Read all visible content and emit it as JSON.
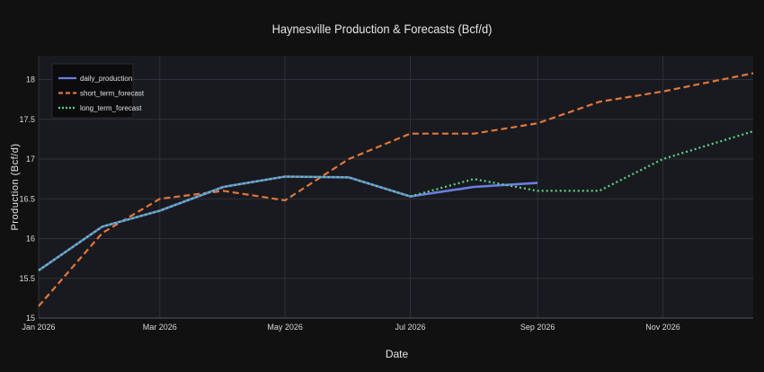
{
  "chart_data": {
    "type": "line",
    "title": "Haynesville Production & Forecasts (Bcf/d)",
    "xlabel": "Date",
    "ylabel": "Production (Bcf/d)",
    "x_ticks": [
      "Jan 2026",
      "Mar 2026",
      "May 2026",
      "Jul 2026",
      "Sep 2026",
      "Nov 2026"
    ],
    "y_ticks": [
      "15",
      "15.5",
      "16",
      "16.5",
      "17",
      "17.5",
      "18"
    ],
    "xlim": [
      "2026-01-01",
      "2026-12-15"
    ],
    "ylim": [
      15.0,
      18.3
    ],
    "grid": true,
    "legend_position": "top-left",
    "series": [
      {
        "name": "daily_production",
        "color": "#6b7fe0",
        "style": "solid",
        "x": [
          "2026-01-01",
          "2026-02-01",
          "2026-03-01",
          "2026-04-01",
          "2026-05-01",
          "2026-06-01",
          "2026-07-01",
          "2026-08-01",
          "2026-09-01"
        ],
        "y": [
          15.6,
          16.15,
          16.35,
          16.65,
          16.78,
          16.77,
          16.53,
          16.65,
          16.7
        ]
      },
      {
        "name": "short_term_forecast",
        "color": "#e2773b",
        "style": "dashed",
        "x": [
          "2026-01-01",
          "2026-02-01",
          "2026-03-01",
          "2026-04-01",
          "2026-05-01",
          "2026-06-01",
          "2026-07-01",
          "2026-08-01",
          "2026-09-01",
          "2026-10-01",
          "2026-11-01",
          "2026-12-15"
        ],
        "y": [
          15.15,
          16.07,
          16.5,
          16.6,
          16.48,
          17.0,
          17.32,
          17.32,
          17.45,
          17.72,
          17.85,
          18.08
        ]
      },
      {
        "name": "long_term_forecast",
        "color": "#5bd68a",
        "style": "dotted",
        "x": [
          "2026-01-01",
          "2026-02-01",
          "2026-03-01",
          "2026-04-01",
          "2026-05-01",
          "2026-06-01",
          "2026-07-01",
          "2026-08-01",
          "2026-09-01",
          "2026-10-01",
          "2026-11-01",
          "2026-12-15"
        ],
        "y": [
          15.6,
          16.15,
          16.35,
          16.65,
          16.78,
          16.77,
          16.53,
          16.75,
          16.6,
          16.6,
          17.0,
          17.35
        ]
      }
    ]
  }
}
